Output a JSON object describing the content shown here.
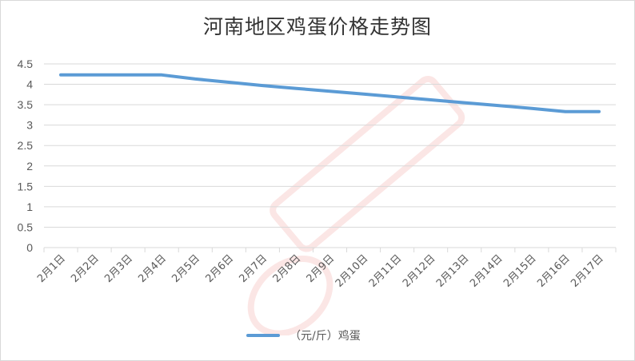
{
  "chart_data": {
    "type": "line",
    "title": "河南地区鸡蛋价格走势图",
    "categories": [
      "2月1日",
      "2月2日",
      "2月3日",
      "2月4日",
      "2月5日",
      "2月6日",
      "2月7日",
      "2月8日",
      "2月9日",
      "2月10日",
      "2月11日",
      "2月12日",
      "2月13日",
      "2月14日",
      "2月15日",
      "2月16日",
      "2月17日"
    ],
    "series": [
      {
        "name": "（元/斤）鸡蛋",
        "values": [
          4.23,
          4.23,
          4.23,
          4.23,
          4.13,
          4.05,
          3.97,
          3.9,
          3.83,
          3.76,
          3.69,
          3.62,
          3.55,
          3.48,
          3.41,
          3.33,
          3.33
        ]
      }
    ],
    "yticks": [
      "0",
      "0.5",
      "1",
      "1.5",
      "2",
      "2.5",
      "3",
      "3.5",
      "4",
      "4.5"
    ],
    "ylim": [
      0,
      4.5
    ],
    "grid": true,
    "legend_position": "bottom",
    "line_color": "#5b9bd5"
  }
}
